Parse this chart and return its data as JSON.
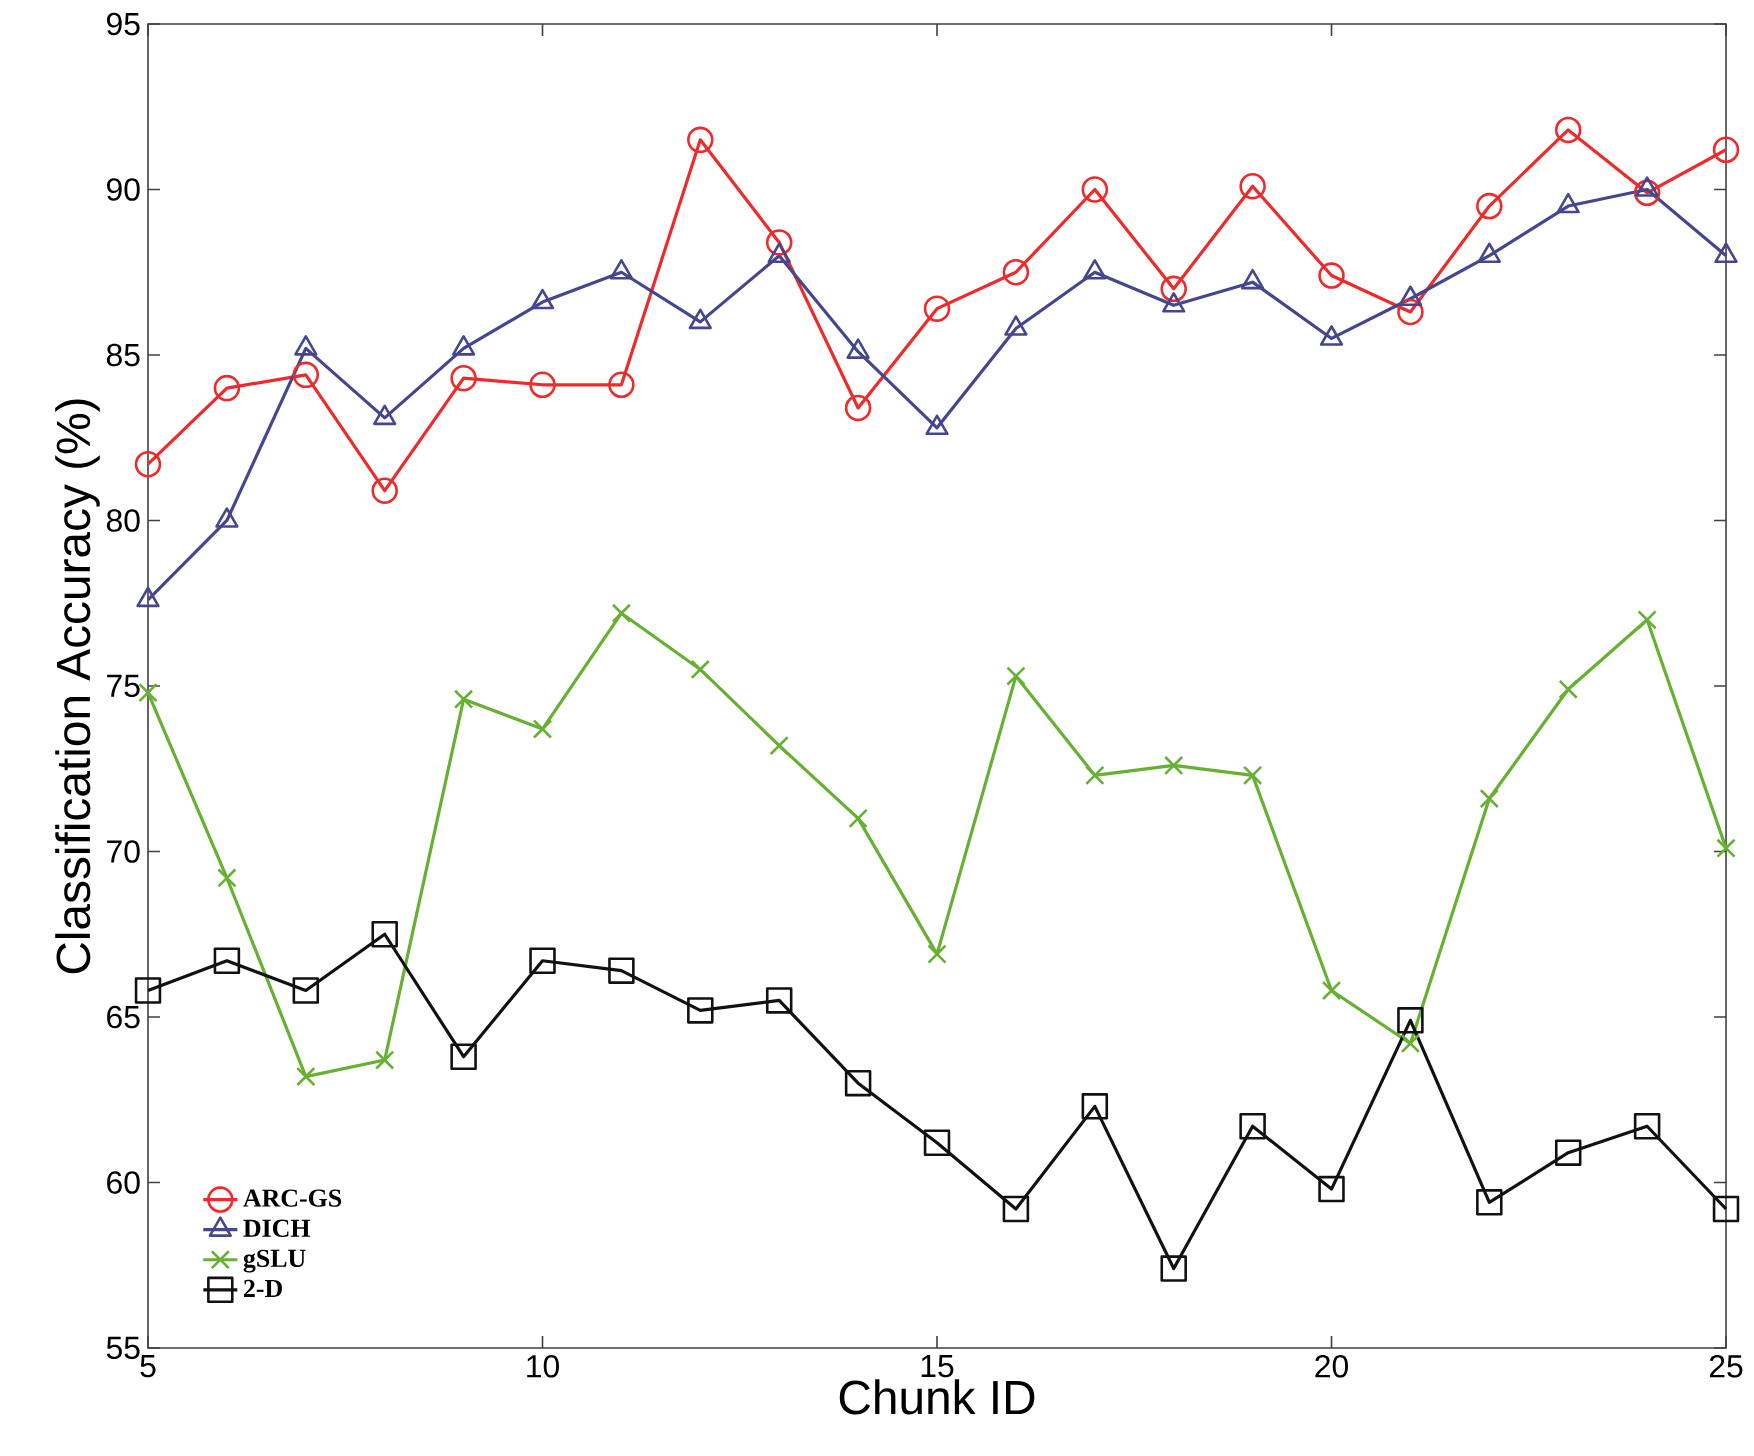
{
  "chart_data": {
    "type": "line",
    "xlabel": "Chunk ID",
    "ylabel": "Classification Accuracy (%)",
    "x": [
      5,
      6,
      7,
      8,
      9,
      10,
      11,
      12,
      13,
      14,
      15,
      16,
      17,
      18,
      19,
      20,
      21,
      22,
      23,
      24,
      25
    ],
    "xlim": [
      5,
      25
    ],
    "xticks": [
      5,
      10,
      15,
      20,
      25
    ],
    "ylim": [
      55,
      95
    ],
    "yticks": [
      55,
      60,
      65,
      70,
      75,
      80,
      85,
      90,
      95
    ],
    "grid": false,
    "legend": "bottom left",
    "line_style": "solid",
    "series": [
      {
        "name": "ARC-GS",
        "color": "#ee2a2a",
        "marker": "circle",
        "values": [
          81.7,
          84.0,
          84.4,
          80.9,
          84.3,
          84.1,
          84.1,
          91.5,
          88.4,
          83.4,
          86.4,
          87.5,
          90.0,
          87.0,
          90.1,
          87.4,
          86.3,
          89.5,
          91.8,
          89.9,
          91.2
        ]
      },
      {
        "name": "DICH",
        "color": "#45468f",
        "marker": "triangle",
        "values": [
          77.6,
          80.0,
          85.2,
          83.1,
          85.2,
          86.6,
          87.5,
          86.0,
          88.0,
          85.1,
          82.8,
          85.8,
          87.5,
          86.5,
          87.2,
          85.5,
          86.7,
          88.0,
          89.5,
          90.0,
          88.0
        ]
      },
      {
        "name": "gSLU",
        "color": "#66b032",
        "marker": "cross",
        "values": [
          74.8,
          69.2,
          63.2,
          63.7,
          74.6,
          73.7,
          77.2,
          75.5,
          73.2,
          71.0,
          66.9,
          75.3,
          72.3,
          72.6,
          72.3,
          65.8,
          64.2,
          71.6,
          74.9,
          77.0,
          70.1
        ]
      },
      {
        "name": "2-D",
        "color": "#111111",
        "marker": "square",
        "values": [
          65.8,
          66.7,
          65.8,
          67.5,
          63.8,
          66.7,
          66.4,
          65.2,
          65.5,
          63.0,
          61.2,
          59.2,
          62.3,
          57.4,
          61.7,
          59.8,
          64.9,
          59.4,
          60.9,
          61.7,
          59.2
        ]
      }
    ]
  }
}
